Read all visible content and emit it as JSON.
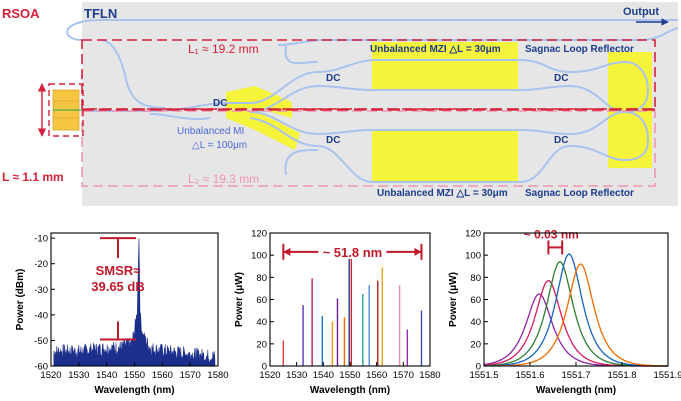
{
  "diagram": {
    "rsoa_label": "RSOA",
    "tfln_label": "TFLN",
    "output_label": "Output",
    "l1_label": "L₁ ≈ 19.2 mm",
    "l2_label": "L₂ ≈ 19.3 mm",
    "l_label": "L ≈ 1.1 mm",
    "dc_label": "DC",
    "mzi_top_label": "Unbalanced MZI △L = 30μm",
    "mzi_bottom_label": "Unbalanced MZI △L = 30μm",
    "slr_top_label": "Sagnac Loop Reflector",
    "slr_bottom_label": "Sagnac Loop Reflector",
    "mi_label_line1": "Unbalanced MI",
    "mi_label_line2": "△L = 100μm",
    "colors": {
      "red": "#d6203a",
      "blue": "#1c3c8c",
      "yellow": "#f6f33b",
      "chip": "#e6e6e6",
      "guide": "#a9c3ee",
      "pink": "#ef96ae"
    }
  },
  "chart_data": [
    {
      "type": "line",
      "panel": "spectrum",
      "xlabel": "Wavelength (nm)",
      "ylabel": "Power (dBm)",
      "xlim": [
        1520,
        1580
      ],
      "ylim": [
        -60,
        -8
      ],
      "xticks": [
        1520,
        1530,
        1540,
        1550,
        1560,
        1570,
        1580
      ],
      "yticks": [
        -60,
        -50,
        -40,
        -30,
        -20,
        -10
      ],
      "series": [
        {
          "name": "spectrum",
          "color": "#1c2f8c",
          "x": [
            1522,
            1530,
            1538,
            1545,
            1549,
            1550,
            1551,
            1551.6,
            1552,
            1553,
            1556,
            1562,
            1570,
            1578
          ],
          "values": [
            -56,
            -56,
            -55,
            -54.5,
            -53,
            -48,
            -40,
            -10,
            -42,
            -50,
            -55,
            -56,
            -57,
            -58
          ]
        }
      ],
      "annotation": {
        "line1": "SMSR≈",
        "line2": "39.65 dB",
        "top_value": -10,
        "bottom_value": -49.65
      }
    },
    {
      "type": "bar",
      "panel": "multi-wavelength",
      "xlabel": "Wavelength (nm)",
      "ylabel": "Power (μW)",
      "xlim": [
        1520,
        1580
      ],
      "ylim": [
        0,
        120
      ],
      "xticks": [
        1520,
        1530,
        1540,
        1550,
        1560,
        1570,
        1580
      ],
      "yticks": [
        0,
        20,
        40,
        60,
        80,
        100,
        120
      ],
      "lines": [
        {
          "x": 1525.0,
          "y": 23,
          "color": "#e23b3b"
        },
        {
          "x": 1532.4,
          "y": 55,
          "color": "#5e35b1"
        },
        {
          "x": 1535.8,
          "y": 79,
          "color": "#c2185b"
        },
        {
          "x": 1539.6,
          "y": 45,
          "color": "#1a73c8"
        },
        {
          "x": 1543.4,
          "y": 40,
          "color": "#f39c12"
        },
        {
          "x": 1545.3,
          "y": 61,
          "color": "#6a1b9a"
        },
        {
          "x": 1547.9,
          "y": 44,
          "color": "#ef6c00"
        },
        {
          "x": 1549.7,
          "y": 100,
          "color": "#283593"
        },
        {
          "x": 1550.5,
          "y": 103,
          "color": "#c62828"
        },
        {
          "x": 1554.8,
          "y": 65,
          "color": "#26a69a"
        },
        {
          "x": 1557.2,
          "y": 73,
          "color": "#4a8fe7"
        },
        {
          "x": 1560.4,
          "y": 77,
          "color": "#b71c1c"
        },
        {
          "x": 1562.1,
          "y": 89,
          "color": "#e6a817"
        },
        {
          "x": 1568.6,
          "y": 73,
          "color": "#ef8fa8"
        },
        {
          "x": 1571.5,
          "y": 33,
          "color": "#9c27b0"
        },
        {
          "x": 1576.8,
          "y": 50,
          "color": "#3949ab"
        }
      ],
      "annotation": {
        "label": "~ 51.8 nm",
        "from": 1525.0,
        "to": 1576.8
      }
    },
    {
      "type": "line",
      "panel": "tuning",
      "xlabel": "Wavelength (nm)",
      "ylabel": "Power (μW)",
      "xlim": [
        1551.5,
        1551.9
      ],
      "ylim": [
        0,
        120
      ],
      "xticks": [
        1551.5,
        1551.6,
        1551.7,
        1551.8,
        1551.9
      ],
      "yticks": [
        0,
        20,
        40,
        60,
        80,
        100,
        120
      ],
      "peaks": [
        {
          "center": 1551.62,
          "peak": 65,
          "color": "#8e24aa"
        },
        {
          "center": 1551.64,
          "peak": 77,
          "color": "#d81b60"
        },
        {
          "center": 1551.665,
          "peak": 94,
          "color": "#2e7d32"
        },
        {
          "center": 1551.685,
          "peak": 101,
          "color": "#1565c0"
        },
        {
          "center": 1551.71,
          "peak": 92,
          "color": "#ef6c00"
        }
      ],
      "annotation": {
        "label": "~ 0.03 nm",
        "from": 1551.64,
        "to": 1551.67
      }
    }
  ]
}
